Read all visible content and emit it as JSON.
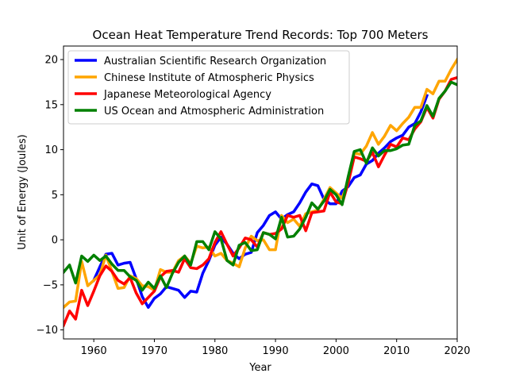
{
  "chart_data": {
    "type": "line",
    "title": "Ocean Heat Temperature Trend Records: Top 700 Meters",
    "xlabel": "Year",
    "ylabel": "Unit of Energy (Joules)",
    "xlim": [
      1955,
      2020
    ],
    "ylim": [
      -11,
      21.5
    ],
    "xticks": [
      1960,
      1970,
      1980,
      1990,
      2000,
      2010,
      2020
    ],
    "yticks": [
      -10,
      -5,
      0,
      5,
      10,
      15,
      20
    ],
    "grid": false,
    "legend_position": "top-left",
    "series": [
      {
        "name": "Australian Scientific Research Organization",
        "color": "#0000ff",
        "x": [
          1960,
          1961,
          1962,
          1963,
          1964,
          1965,
          1966,
          1967,
          1968,
          1969,
          1970,
          1971,
          1972,
          1973,
          1974,
          1975,
          1976,
          1977,
          1978,
          1979,
          1980,
          1981,
          1982,
          1983,
          1984,
          1985,
          1986,
          1987,
          1988,
          1989,
          1990,
          1991,
          1992,
          1993,
          1994,
          1995,
          1996,
          1997,
          1998,
          1999,
          2000,
          2001,
          2002,
          2003,
          2004,
          2005,
          2006,
          2007,
          2008,
          2009,
          2010,
          2011,
          2012,
          2013,
          2014,
          2015
        ],
        "y": [
          -4.5,
          -3.0,
          -1.6,
          -1.5,
          -2.8,
          -2.6,
          -2.5,
          -4.3,
          -6.3,
          -7.5,
          -6.5,
          -6.0,
          -5.2,
          -5.4,
          -5.6,
          -6.4,
          -5.7,
          -5.8,
          -3.7,
          -2.3,
          -0.6,
          0.3,
          -0.5,
          -1.5,
          -2.1,
          -1.6,
          -1.4,
          0.8,
          1.6,
          2.7,
          3.1,
          2.3,
          2.8,
          3.1,
          4.1,
          5.3,
          6.2,
          6.0,
          4.5,
          4.0,
          4.0,
          5.4,
          5.9,
          6.9,
          7.2,
          8.4,
          8.8,
          9.6,
          10.2,
          10.9,
          11.3,
          11.6,
          12.5,
          12.9,
          14.2,
          16.0
        ]
      },
      {
        "name": "Chinese Institute of Atmospheric Physics",
        "color": "#ffa500",
        "x": [
          1955,
          1956,
          1957,
          1958,
          1959,
          1960,
          1961,
          1962,
          1963,
          1964,
          1965,
          1966,
          1967,
          1968,
          1969,
          1970,
          1971,
          1972,
          1973,
          1974,
          1975,
          1976,
          1977,
          1978,
          1979,
          1980,
          1981,
          1982,
          1983,
          1984,
          1985,
          1986,
          1987,
          1988,
          1989,
          1990,
          1991,
          1992,
          1993,
          1994,
          1995,
          1996,
          1997,
          1998,
          1999,
          2000,
          2001,
          2002,
          2003,
          2004,
          2005,
          2006,
          2007,
          2008,
          2009,
          2010,
          2011,
          2012,
          2013,
          2014,
          2015,
          2016,
          2017,
          2018,
          2019,
          2020
        ],
        "y": [
          -7.5,
          -6.9,
          -6.8,
          -2.4,
          -5.1,
          -4.5,
          -3.9,
          -1.7,
          -3.5,
          -5.4,
          -5.3,
          -4.0,
          -4.3,
          -5.1,
          -5.2,
          -5.6,
          -3.3,
          -3.6,
          -3.6,
          -2.3,
          -1.8,
          -2.6,
          -0.7,
          -0.9,
          -0.8,
          -1.8,
          -1.5,
          -2.3,
          -2.6,
          -3.0,
          -0.9,
          0.4,
          -0.1,
          0.0,
          -1.1,
          -1.1,
          2.7,
          1.9,
          2.3,
          1.5,
          2.9,
          3.1,
          3.3,
          4.5,
          5.8,
          5.2,
          4.6,
          6.5,
          9.6,
          9.5,
          10.4,
          11.9,
          10.6,
          11.5,
          12.7,
          12.1,
          12.9,
          13.6,
          14.7,
          14.7,
          16.7,
          16.2,
          17.6,
          17.6,
          18.9,
          20.0
        ]
      },
      {
        "name": "Japanese Meteorological Agency",
        "color": "#ff0000",
        "x": [
          1955,
          1956,
          1957,
          1958,
          1959,
          1960,
          1961,
          1962,
          1963,
          1964,
          1965,
          1966,
          1967,
          1968,
          1969,
          1970,
          1971,
          1972,
          1973,
          1974,
          1975,
          1976,
          1977,
          1978,
          1979,
          1980,
          1981,
          1982,
          1983,
          1984,
          1985,
          1986,
          1987,
          1988,
          1989,
          1990,
          1991,
          1992,
          1993,
          1994,
          1995,
          1996,
          1997,
          1998,
          1999,
          2000,
          2001,
          2002,
          2003,
          2004,
          2005,
          2006,
          2007,
          2008,
          2009,
          2010,
          2011,
          2012,
          2013,
          2014,
          2015,
          2016,
          2017,
          2018,
          2019,
          2020
        ],
        "y": [
          -9.5,
          -7.9,
          -8.8,
          -5.6,
          -7.3,
          -5.7,
          -4.0,
          -2.9,
          -3.5,
          -4.5,
          -4.9,
          -4.2,
          -5.9,
          -7.1,
          -6.4,
          -5.7,
          -4.1,
          -3.5,
          -3.4,
          -3.6,
          -2.1,
          -3.1,
          -3.2,
          -2.8,
          -2.1,
          -0.3,
          0.9,
          -0.5,
          -1.8,
          -0.9,
          0.2,
          0.0,
          -0.8,
          0.8,
          0.6,
          0.7,
          1.2,
          2.7,
          2.5,
          2.7,
          1.0,
          3.0,
          3.1,
          3.2,
          5.3,
          4.2,
          4.0,
          6.3,
          9.2,
          9.0,
          8.7,
          9.7,
          8.1,
          9.4,
          10.6,
          10.3,
          11.3,
          11.1,
          12.3,
          13.1,
          14.7,
          13.5,
          15.6,
          16.5,
          17.8,
          18.0
        ]
      },
      {
        "name": "US Ocean and Atmospheric Administration",
        "color": "#008000",
        "x": [
          1955,
          1956,
          1957,
          1958,
          1959,
          1960,
          1961,
          1962,
          1963,
          1964,
          1965,
          1966,
          1967,
          1968,
          1969,
          1970,
          1971,
          1972,
          1973,
          1974,
          1975,
          1976,
          1977,
          1978,
          1979,
          1980,
          1981,
          1982,
          1983,
          1984,
          1985,
          1986,
          1987,
          1988,
          1989,
          1990,
          1991,
          1992,
          1993,
          1994,
          1995,
          1996,
          1997,
          1998,
          1999,
          2000,
          2001,
          2002,
          2003,
          2004,
          2005,
          2006,
          2007,
          2008,
          2009,
          2010,
          2011,
          2012,
          2013,
          2014,
          2015,
          2016,
          2017,
          2018,
          2019,
          2020
        ],
        "y": [
          -3.6,
          -2.8,
          -4.8,
          -1.8,
          -2.4,
          -1.7,
          -2.3,
          -1.8,
          -2.7,
          -3.4,
          -3.4,
          -4.1,
          -4.5,
          -5.6,
          -4.7,
          -5.4,
          -4.0,
          -5.3,
          -3.7,
          -2.5,
          -1.8,
          -2.8,
          -0.2,
          -0.2,
          -1.1,
          0.9,
          0.1,
          -2.3,
          -2.8,
          -0.6,
          -0.3,
          -1.2,
          -1.1,
          0.8,
          0.6,
          0.1,
          2.5,
          0.3,
          0.4,
          1.2,
          2.5,
          4.1,
          3.4,
          4.3,
          5.6,
          5.0,
          3.9,
          7.0,
          9.8,
          10.0,
          8.5,
          10.2,
          9.3,
          9.9,
          9.9,
          10.1,
          10.5,
          10.6,
          12.7,
          13.2,
          14.9,
          13.7,
          15.7,
          16.5,
          17.5,
          17.2
        ]
      }
    ]
  }
}
